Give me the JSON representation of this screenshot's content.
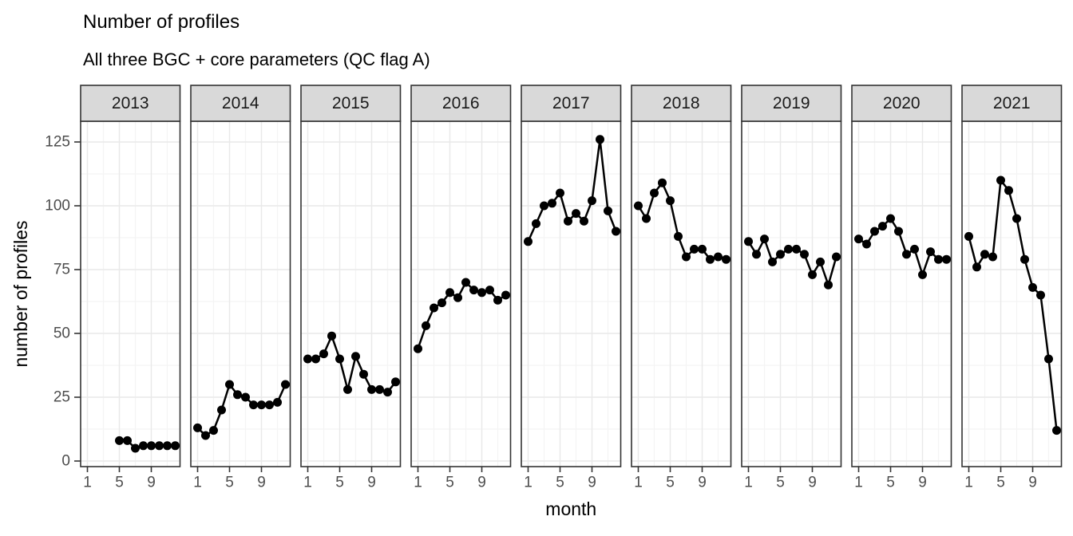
{
  "title": "Number of profiles",
  "subtitle": "All three BGC + core parameters (QC flag A)",
  "colors": {
    "background": "#ffffff",
    "panel_background": "#ffffff",
    "strip_fill": "#d9d9d9",
    "strip_border": "#333333",
    "strip_text": "#1a1a1a",
    "panel_border": "#333333",
    "grid_major": "#e9e9e9",
    "grid_minor": "#f4f4f4",
    "line": "#000000",
    "point": "#000000",
    "tick_mark": "#333333",
    "tick_label": "#4d4d4d",
    "axis_title": "#000000"
  },
  "chart_data": {
    "type": "line",
    "title": "Number of profiles",
    "subtitle": "All three BGC + core parameters (QC flag A)",
    "xlabel": "month",
    "ylabel": "number of profiles",
    "facet_variable": "year",
    "x": [
      1,
      2,
      3,
      4,
      5,
      6,
      7,
      8,
      9,
      10,
      11,
      12
    ],
    "x_tick_labels": [
      "1",
      "5",
      "9"
    ],
    "x_ticks": [
      1,
      5,
      9
    ],
    "x_minor_gridlines": [
      3,
      7,
      11
    ],
    "y_ticks": [
      0,
      25,
      50,
      75,
      100,
      125
    ],
    "y_minor_gridlines": [
      12.5,
      37.5,
      62.5,
      87.5,
      112.5
    ],
    "ylim": [
      -2,
      133
    ],
    "xlim": [
      0.15,
      12.6
    ],
    "grid": "major+minor",
    "legend": "none",
    "marker": "filled-circle",
    "facets": [
      {
        "year": "2013",
        "values": [
          null,
          null,
          null,
          null,
          8,
          8,
          5,
          6,
          6,
          6,
          6,
          6
        ]
      },
      {
        "year": "2014",
        "values": [
          13,
          10,
          12,
          20,
          30,
          26,
          25,
          22,
          22,
          22,
          23,
          30
        ]
      },
      {
        "year": "2015",
        "values": [
          40,
          40,
          42,
          49,
          40,
          28,
          41,
          34,
          28,
          28,
          27,
          31
        ]
      },
      {
        "year": "2016",
        "values": [
          44,
          53,
          60,
          62,
          66,
          64,
          70,
          67,
          66,
          67,
          63,
          65
        ]
      },
      {
        "year": "2017",
        "values": [
          86,
          93,
          100,
          101,
          105,
          94,
          97,
          94,
          102,
          126,
          98,
          90
        ]
      },
      {
        "year": "2018",
        "values": [
          100,
          95,
          105,
          109,
          102,
          88,
          80,
          83,
          83,
          79,
          80,
          79
        ]
      },
      {
        "year": "2019",
        "values": [
          86,
          81,
          87,
          78,
          81,
          83,
          83,
          81,
          73,
          78,
          69,
          80
        ]
      },
      {
        "year": "2020",
        "values": [
          87,
          85,
          90,
          92,
          95,
          90,
          81,
          83,
          73,
          82,
          79,
          79
        ]
      },
      {
        "year": "2021",
        "values": [
          88,
          76,
          81,
          80,
          110,
          106,
          95,
          79,
          68,
          65,
          40,
          12
        ]
      }
    ]
  }
}
